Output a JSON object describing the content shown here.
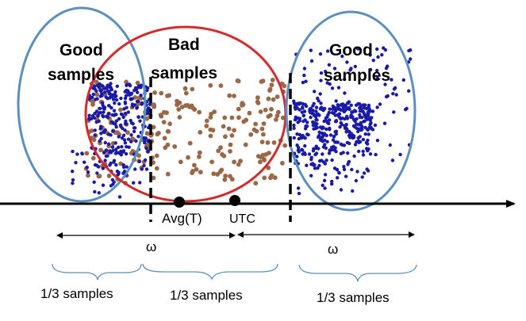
{
  "regions": {
    "left_label_line1": "Good",
    "left_label_line2": "samples",
    "middle_label_line1": "Bad",
    "middle_label_line2": "samples",
    "right_label_line1": "Good",
    "right_label_line2": "samples"
  },
  "axis_labels": {
    "avg": "Avg(T)",
    "utc": "UTC"
  },
  "windows": {
    "left_omega": "ω",
    "right_omega": "ω"
  },
  "partition": {
    "left": "1/3 samples",
    "middle": "1/3 samples",
    "right": "1/3 samples"
  },
  "colors": {
    "good_ellipse": "#5b8fc0",
    "bad_circle": "#d42a2a",
    "good_points": "#1a1aa8",
    "bad_points": "#9a6848",
    "axis": "#000000"
  }
}
